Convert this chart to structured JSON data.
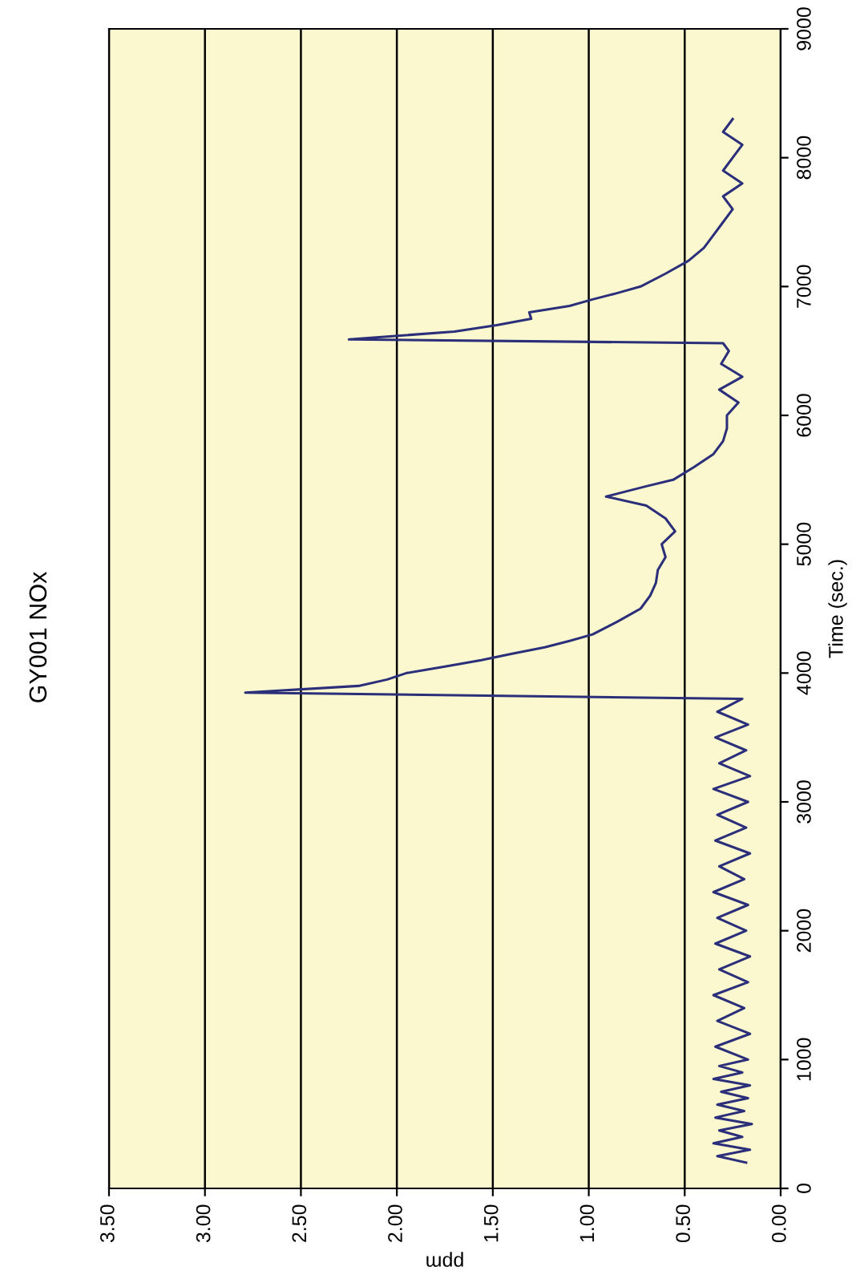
{
  "chart_data": {
    "type": "line",
    "title": "GY001 NOx",
    "xlabel": "ppm",
    "ylabel": "Time (sec.)",
    "ylim": [
      0,
      9000
    ],
    "yticks": [
      0,
      1000,
      2000,
      3000,
      4000,
      5000,
      6000,
      7000,
      8000,
      9000
    ],
    "xlim": [
      3.5,
      0
    ],
    "xticks": [
      {
        "value": 0,
        "label": "0.00"
      },
      {
        "value": 0.5,
        "label": "0.50"
      },
      {
        "value": 1,
        "label": "1.00"
      },
      {
        "value": 1.5,
        "label": "1.50"
      },
      {
        "value": 2,
        "label": "2.00"
      },
      {
        "value": 2.5,
        "label": "2.50"
      },
      {
        "value": 3,
        "label": "3.00"
      },
      {
        "value": 3.5,
        "label": "3.50"
      }
    ],
    "grid": "x",
    "legend": false,
    "marker": "none",
    "line_style": "solid",
    "series": [
      {
        "color": "#2b2f7a",
        "values": [
          200,
          250,
          300,
          350,
          400,
          450,
          500,
          550,
          600,
          650,
          700,
          750,
          800,
          850,
          900,
          950,
          1000,
          1100,
          1200,
          1300,
          1400,
          1500,
          1600,
          1700,
          1800,
          1900,
          2000,
          2100,
          2200,
          2300,
          2400,
          2500,
          2600,
          2700,
          2800,
          2900,
          3000,
          3100,
          3200,
          3300,
          3400,
          3500,
          3600,
          3700,
          3800,
          3848,
          3900,
          3950,
          4000,
          4050,
          4100,
          4150,
          4200,
          4250,
          4300,
          4400,
          4500,
          4600,
          4700,
          4800,
          4900,
          5000,
          5100,
          5200,
          5300,
          5370,
          5450,
          5500,
          5600,
          5700,
          5800,
          5900,
          6000,
          6100,
          6200,
          6300,
          6400,
          6500,
          6560,
          6590,
          6650,
          6700,
          6750,
          6800,
          6850,
          6900,
          6950,
          7000,
          7100,
          7200,
          7300,
          7400,
          7500,
          7600,
          7700,
          7800,
          7900,
          8000,
          8100,
          8200,
          8300
        ],
        "x": [
          0.18,
          0.33,
          0.16,
          0.35,
          0.2,
          0.32,
          0.15,
          0.34,
          0.19,
          0.33,
          0.17,
          0.31,
          0.16,
          0.35,
          0.2,
          0.32,
          0.17,
          0.34,
          0.16,
          0.33,
          0.19,
          0.35,
          0.17,
          0.32,
          0.16,
          0.34,
          0.18,
          0.33,
          0.17,
          0.35,
          0.19,
          0.32,
          0.16,
          0.34,
          0.18,
          0.33,
          0.17,
          0.35,
          0.16,
          0.32,
          0.18,
          0.34,
          0.17,
          0.33,
          0.2,
          2.79,
          2.2,
          2.05,
          1.95,
          1.75,
          1.56,
          1.4,
          1.23,
          1.1,
          0.98,
          0.85,
          0.73,
          0.68,
          0.65,
          0.64,
          0.6,
          0.62,
          0.55,
          0.6,
          0.7,
          0.91,
          0.7,
          0.56,
          0.45,
          0.35,
          0.3,
          0.28,
          0.28,
          0.22,
          0.32,
          0.2,
          0.31,
          0.27,
          0.3,
          2.25,
          1.7,
          1.48,
          1.3,
          1.31,
          1.1,
          0.98,
          0.85,
          0.73,
          0.6,
          0.48,
          0.4,
          0.35,
          0.3,
          0.25,
          0.3,
          0.2,
          0.3,
          0.25,
          0.2,
          0.3,
          0.25
        ]
      }
    ]
  }
}
